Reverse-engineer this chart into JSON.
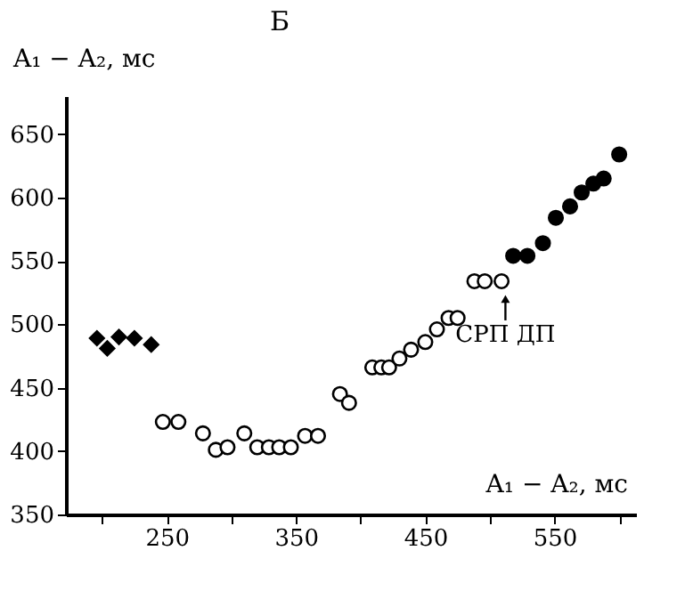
{
  "chart_data": {
    "type": "scatter",
    "title": "Б",
    "xlabel": "A₁ − A₂, мс",
    "ylabel": "A₁ − A₂, мс",
    "xlim": [
      172,
      613
    ],
    "ylim": [
      350,
      680
    ],
    "xticks": [
      {
        "value": 200,
        "label": null
      },
      250,
      {
        "value": 300,
        "label": null
      },
      350,
      {
        "value": 400,
        "label": null
      },
      450,
      {
        "value": 500,
        "label": null
      },
      550,
      {
        "value": 600,
        "label": null
      }
    ],
    "yticks": [
      350,
      400,
      450,
      500,
      550,
      600,
      650
    ],
    "grid": false,
    "legend": false,
    "annotations": [
      {
        "text": "СРП ДП",
        "x": 512,
        "y": 534
      }
    ],
    "series": [
      {
        "color": "#000000",
        "marker": "diamond",
        "x": [
          196,
          204,
          213,
          225,
          238
        ],
        "values": [
          489,
          481,
          490,
          489,
          484
        ]
      },
      {
        "color": "#ffffff",
        "marker": "circle",
        "x": [
          247,
          259,
          278,
          288,
          297,
          310,
          320,
          329,
          337,
          346,
          357,
          367,
          384,
          391,
          409,
          416,
          422,
          430,
          439,
          450,
          459,
          468,
          475,
          488,
          496,
          509
        ],
        "values": [
          423,
          423,
          414,
          401,
          403,
          414,
          403,
          403,
          403,
          403,
          412,
          412,
          445,
          438,
          466,
          466,
          466,
          473,
          480,
          486,
          496,
          505,
          505,
          534,
          534,
          534
        ]
      },
      {
        "color": "#000000",
        "marker": "circle",
        "x": [
          518,
          529,
          541,
          551,
          562,
          571,
          580,
          588,
          600
        ],
        "values": [
          554,
          554,
          564,
          584,
          593,
          604,
          611,
          615,
          634
        ]
      }
    ]
  }
}
